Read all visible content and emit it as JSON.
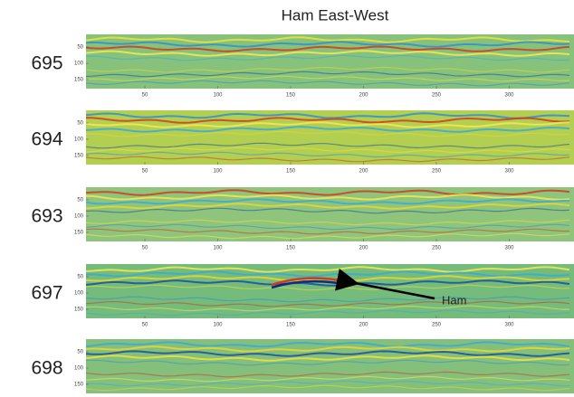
{
  "title": "Ham East-West",
  "panels": [
    {
      "label": "695",
      "yticks": [
        "50",
        "100",
        "150"
      ],
      "xticks": [
        "50",
        "100",
        "150",
        "200",
        "250",
        "300"
      ]
    },
    {
      "label": "694",
      "yticks": [
        "50",
        "100",
        "150"
      ],
      "xticks": [
        "50",
        "100",
        "150",
        "200",
        "250",
        "300"
      ]
    },
    {
      "label": "693",
      "yticks": [
        "50",
        "100",
        "150"
      ],
      "xticks": [
        "50",
        "100",
        "150",
        "200",
        "250",
        "300"
      ]
    },
    {
      "label": "697",
      "yticks": [
        "50",
        "100",
        "150"
      ],
      "xticks": [
        "50",
        "100",
        "150",
        "200",
        "250",
        "300"
      ]
    },
    {
      "label": "698",
      "yticks": [
        "50",
        "100",
        "150"
      ],
      "xticks": []
    }
  ],
  "annotation": "Ham"
}
